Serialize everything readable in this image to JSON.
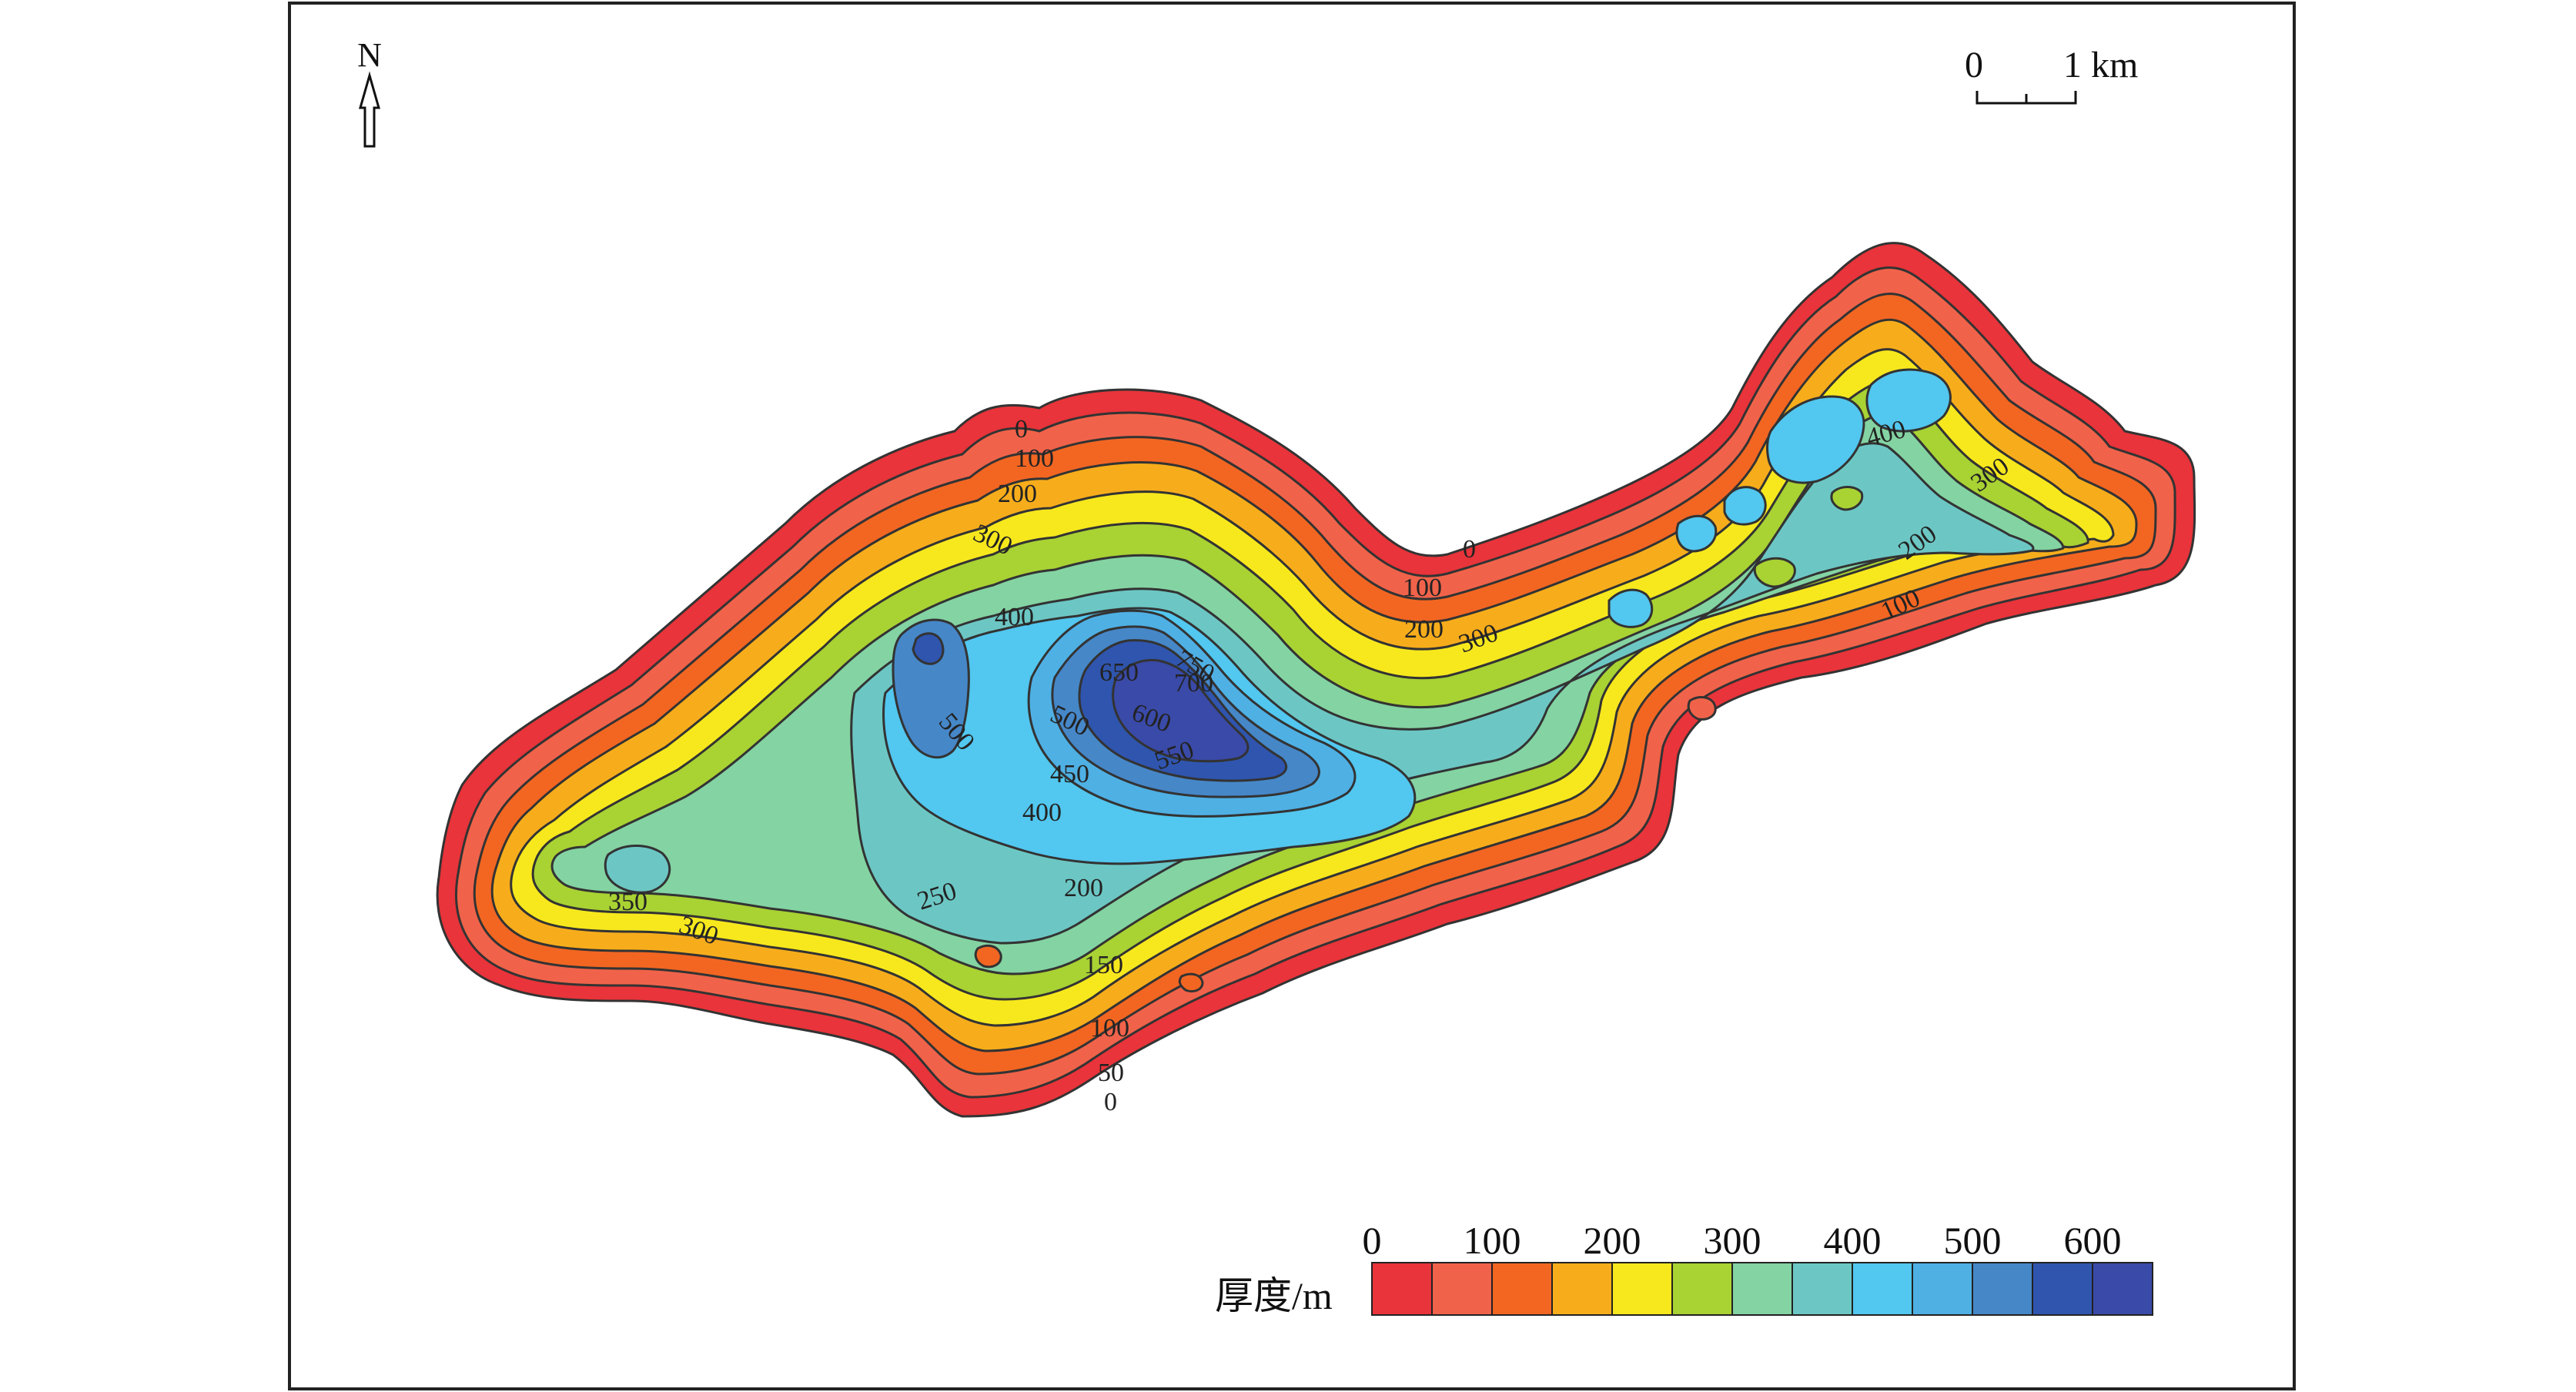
{
  "map": {
    "north_label": "N",
    "scale_bar": {
      "start_label": "0",
      "end_label": "1 km"
    },
    "legend": {
      "title": "厚度/m",
      "tick_labels": [
        "0",
        "100",
        "200",
        "300",
        "400",
        "500",
        "600"
      ],
      "class_colors": [
        "#e8343a",
        "#f0634a",
        "#f26622",
        "#f7ad1b",
        "#f7e81d",
        "#a9d233",
        "#84d3a3",
        "#6cc7c4",
        "#52c7ef",
        "#4fb0e4",
        "#4687c8",
        "#2f55ae",
        "#3a4aa8"
      ]
    },
    "thickness_unit": "m",
    "contour_labels": [
      "0",
      "100",
      "200",
      "300",
      "400",
      "750",
      "650",
      "700",
      "600",
      "500",
      "500",
      "450",
      "400",
      "550",
      "350",
      "300",
      "250",
      "200",
      "150",
      "100",
      "50",
      "0",
      "0",
      "100",
      "200",
      "300",
      "400",
      "300",
      "200",
      "100"
    ]
  }
}
